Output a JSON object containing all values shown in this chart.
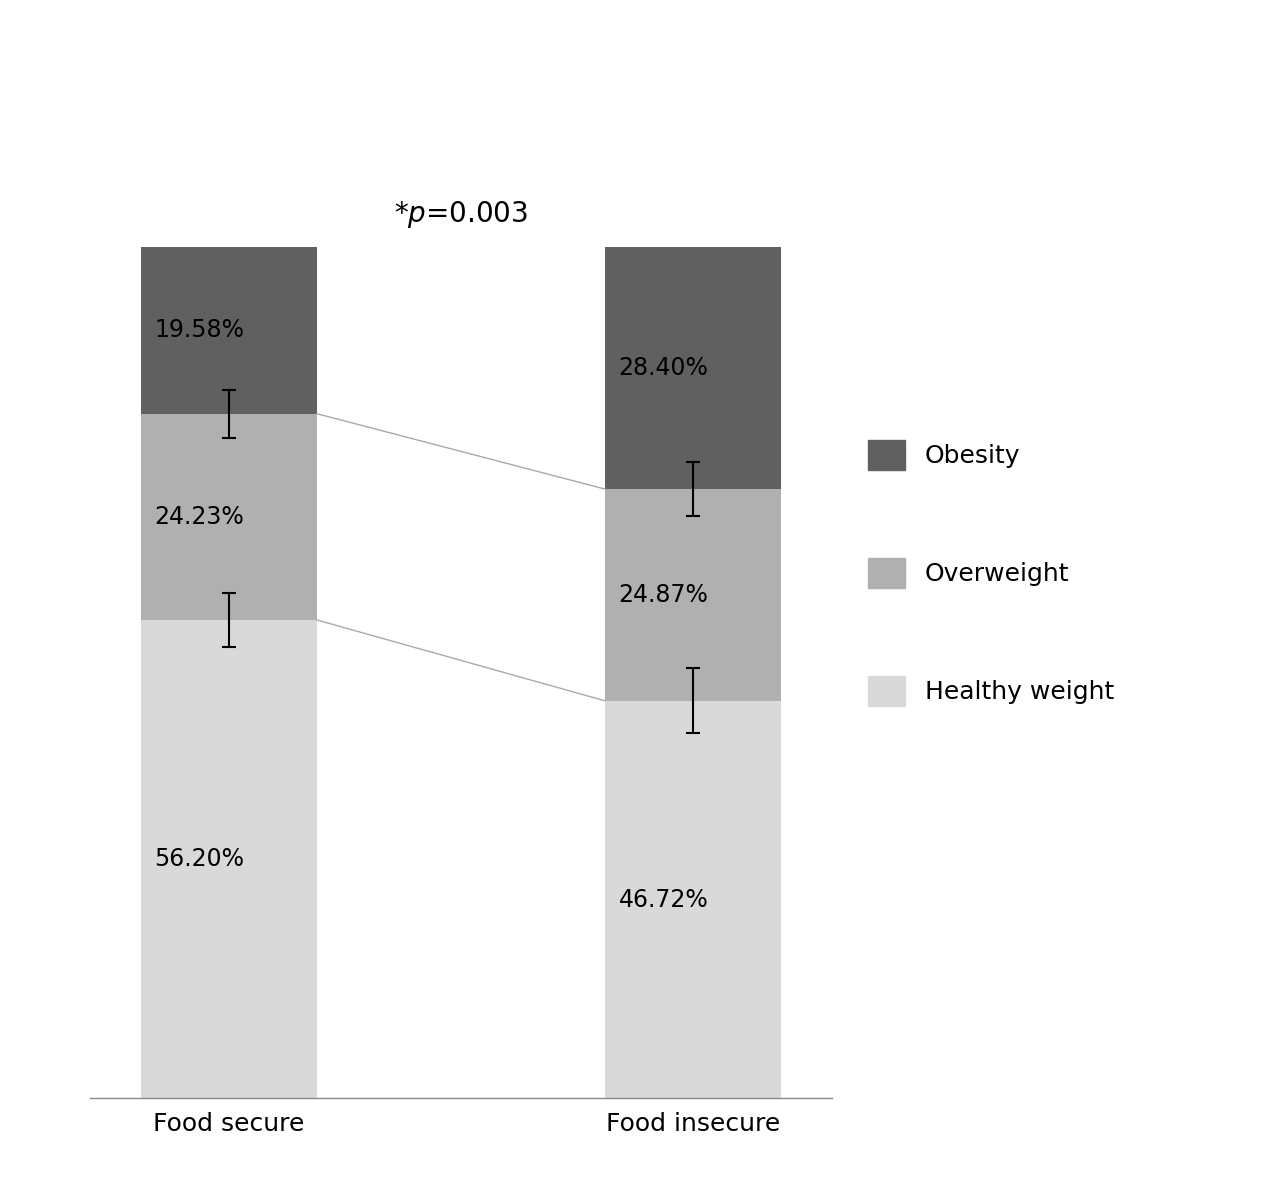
{
  "categories": [
    "Food secure",
    "Food insecure"
  ],
  "healthy_weight": [
    56.2,
    46.72
  ],
  "overweight": [
    24.23,
    24.87
  ],
  "obesity": [
    19.58,
    28.4
  ],
  "healthy_weight_errors": [
    3.2,
    3.8
  ],
  "overweight_errors": [
    2.8,
    3.2
  ],
  "obesity_errors": [
    0,
    0
  ],
  "colors": {
    "healthy_weight": "#d9d9d9",
    "overweight": "#b0b0b0",
    "obesity": "#606060"
  },
  "labels": {
    "healthy_weight": "Healthy weight",
    "overweight": "Overweight",
    "obesity": "Obesity"
  },
  "annotation": "*p=0.003",
  "background_color": "#ffffff",
  "bar_width": 0.38,
  "label_fontsize": 17,
  "tick_fontsize": 18,
  "legend_fontsize": 18
}
